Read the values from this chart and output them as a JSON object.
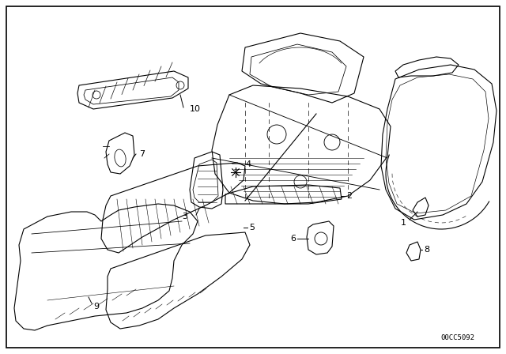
{
  "background_color": "#ffffff",
  "border_color": "#000000",
  "diagram_code": "00CC5092",
  "fig_width": 6.4,
  "fig_height": 4.48,
  "dpi": 100,
  "line_color": "#000000"
}
